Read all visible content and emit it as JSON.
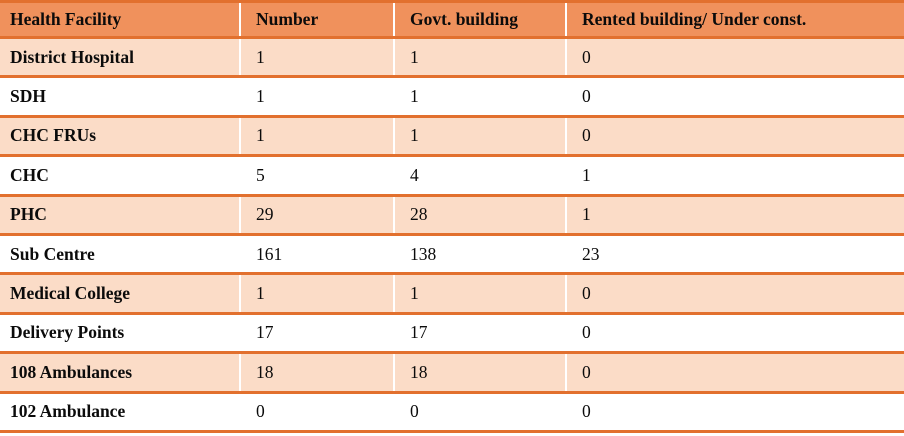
{
  "table": {
    "columns": [
      "Health Facility",
      "Number",
      "Govt. building",
      "Rented building/ Under const."
    ],
    "rows": [
      {
        "facility": "District Hospital",
        "number": "1",
        "govt_building": "1",
        "rented_under_const": "0"
      },
      {
        "facility": "SDH",
        "number": "1",
        "govt_building": "1",
        "rented_under_const": "0"
      },
      {
        "facility": "CHC FRUs",
        "number": "1",
        "govt_building": "1",
        "rented_under_const": "0"
      },
      {
        "facility": "CHC",
        "number": "5",
        "govt_building": "4",
        "rented_under_const": "1"
      },
      {
        "facility": "PHC",
        "number": "29",
        "govt_building": "28",
        "rented_under_const": "1"
      },
      {
        "facility": "Sub Centre",
        "number": "161",
        "govt_building": "138",
        "rented_under_const": "23"
      },
      {
        "facility": "Medical College",
        "number": "1",
        "govt_building": "1",
        "rented_under_const": "0"
      },
      {
        "facility": "Delivery Points",
        "number": "17",
        "govt_building": "17",
        "rented_under_const": "0"
      },
      {
        "facility": "108 Ambulances",
        "number": "18",
        "govt_building": "18",
        "rented_under_const": "0"
      },
      {
        "facility": "102 Ambulance",
        "number": "0",
        "govt_building": "0",
        "rented_under_const": "0"
      }
    ],
    "colors": {
      "header_bg": "#F0915C",
      "alt_row_bg": "#FBDCC7",
      "row_bg": "#FFFFFF",
      "border": "#E2702E",
      "text": "#0B0B0B"
    }
  }
}
